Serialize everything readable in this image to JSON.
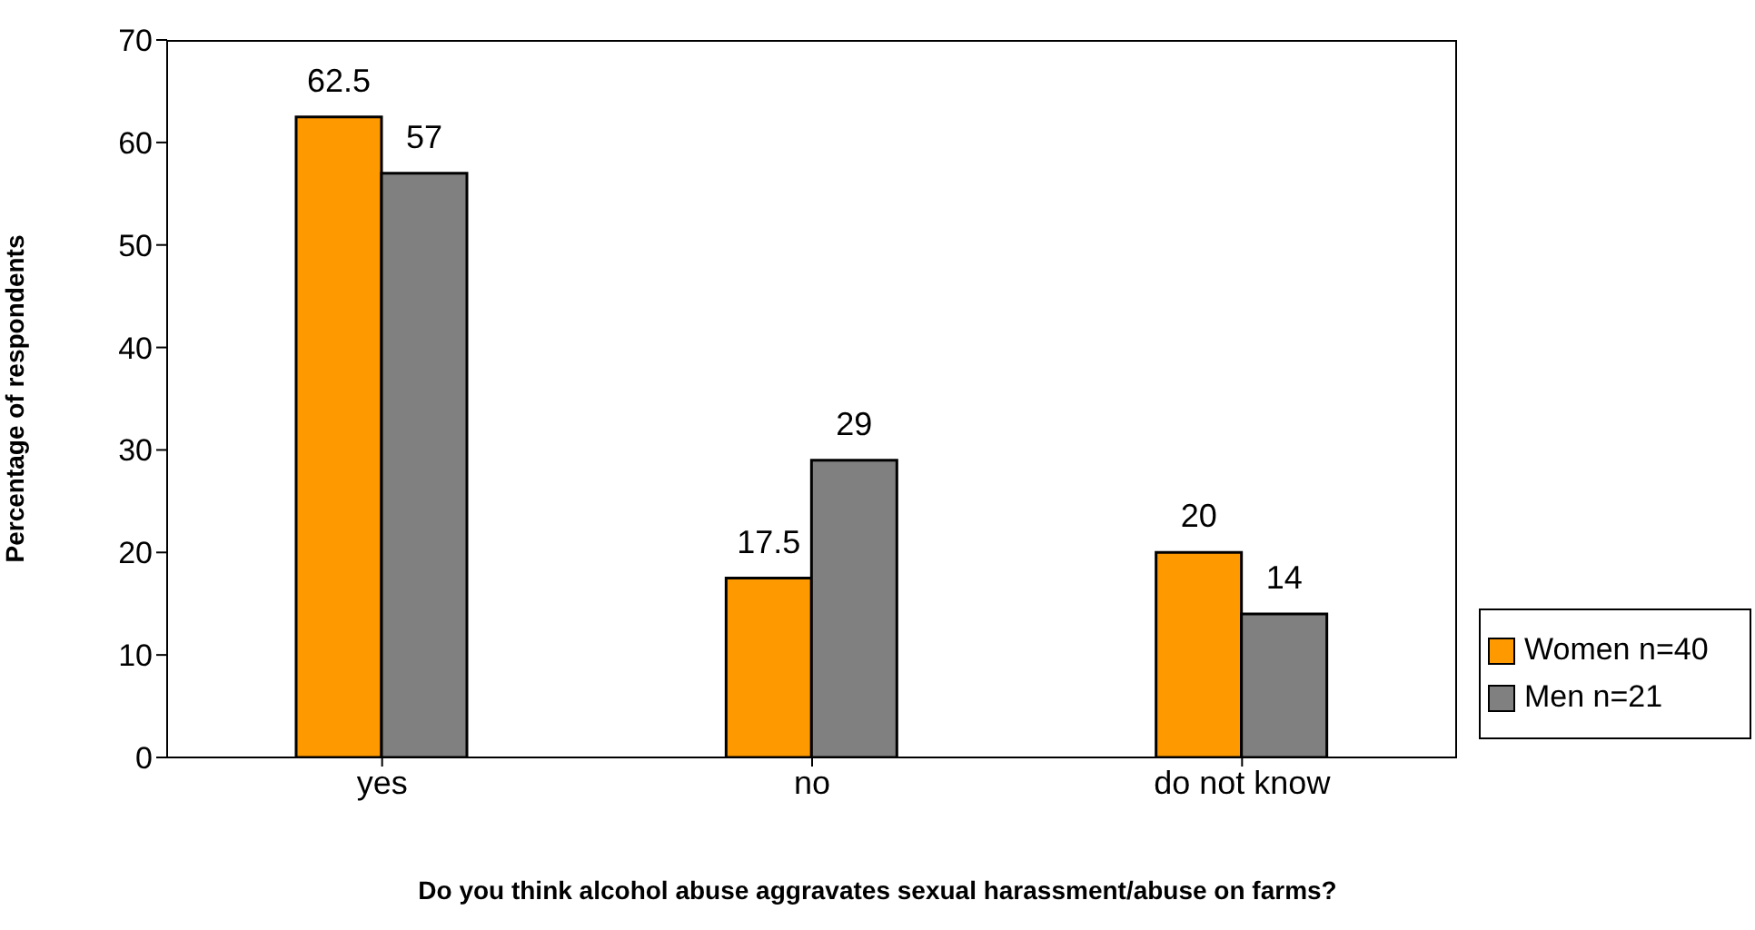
{
  "chart_data": {
    "type": "bar",
    "xlabel": "Do you think alcohol abuse aggravates sexual harassment/abuse on farms?",
    "ylabel": "Percentage of respondents",
    "categories": [
      "yes",
      "no",
      "do not know"
    ],
    "series": [
      {
        "name": "Women n=40",
        "color": "#ff9900",
        "values": [
          62.5,
          17.5,
          20
        ]
      },
      {
        "name": "Men n=21",
        "color": "#808080",
        "values": [
          57,
          29,
          14
        ]
      }
    ],
    "ylim": [
      0,
      70
    ],
    "yticks": [
      0,
      10,
      20,
      30,
      40,
      50,
      60,
      70
    ],
    "data_labels": true,
    "legend": "bottom right",
    "grid": false
  }
}
